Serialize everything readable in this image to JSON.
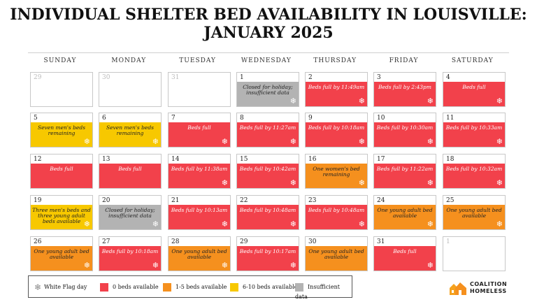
{
  "title_line1": "INDIVIDUAL SHELTER BED AVAILABILITY IN LOUISVILLE:",
  "title_line2": "JANUARY 2025",
  "weekdays": [
    "SUNDAY",
    "MONDAY",
    "TUESDAY",
    "WEDNESDAY",
    "THURSDAY",
    "FRIDAY",
    "SATURDAY"
  ],
  "colors": {
    "red": "#f2414b",
    "orange": "#f5901e",
    "yellow": "#f7c800",
    "gray": "#b3b3b3"
  },
  "weeks": [
    [
      {
        "day": "29",
        "status": "prev",
        "text": "",
        "white_flag": false
      },
      {
        "day": "30",
        "status": "prev",
        "text": "",
        "white_flag": false
      },
      {
        "day": "31",
        "status": "prev",
        "text": "",
        "white_flag": false
      },
      {
        "day": "1",
        "status": "gray",
        "text": "Closed for holiday; insufficient data",
        "white_flag": true
      },
      {
        "day": "2",
        "status": "red",
        "text": "Beds full by 11:49am",
        "white_flag": true
      },
      {
        "day": "3",
        "status": "red",
        "text": "Beds full by 2:43pm",
        "white_flag": true
      },
      {
        "day": "4",
        "status": "red",
        "text": "Beds full",
        "white_flag": true
      }
    ],
    [
      {
        "day": "5",
        "status": "yellow",
        "text": "Seven men's beds remaining",
        "white_flag": true
      },
      {
        "day": "6",
        "status": "yellow",
        "text": "Seven men's beds remaining",
        "white_flag": true
      },
      {
        "day": "7",
        "status": "red",
        "text": "Beds full",
        "white_flag": true
      },
      {
        "day": "8",
        "status": "red",
        "text": "Beds full by 11:27am",
        "white_flag": true
      },
      {
        "day": "9",
        "status": "red",
        "text": "Beds full by 10:18am",
        "white_flag": true
      },
      {
        "day": "10",
        "status": "red",
        "text": "Beds full by 10:30am",
        "white_flag": true
      },
      {
        "day": "11",
        "status": "red",
        "text": "Beds full by 10:33am",
        "white_flag": true
      }
    ],
    [
      {
        "day": "12",
        "status": "red",
        "text": "Beds full",
        "white_flag": false
      },
      {
        "day": "13",
        "status": "red",
        "text": "Beds full",
        "white_flag": false
      },
      {
        "day": "14",
        "status": "red",
        "text": "Beds full by 11:38am",
        "white_flag": true
      },
      {
        "day": "15",
        "status": "red",
        "text": "Beds full by 10:42am",
        "white_flag": true
      },
      {
        "day": "16",
        "status": "orange",
        "text": "One women's bed remaining",
        "white_flag": true
      },
      {
        "day": "17",
        "status": "red",
        "text": "Beds full by 11:22am",
        "white_flag": true
      },
      {
        "day": "18",
        "status": "red",
        "text": "Beds full by 10:32am",
        "white_flag": true
      }
    ],
    [
      {
        "day": "19",
        "status": "yellow",
        "text": "Three men's beds and three young adult beds available",
        "white_flag": true
      },
      {
        "day": "20",
        "status": "gray",
        "text": "Closed for holiday; insufficient data",
        "white_flag": true
      },
      {
        "day": "21",
        "status": "red",
        "text": "Beds full by 10:13am",
        "white_flag": true
      },
      {
        "day": "22",
        "status": "red",
        "text": "Beds full by 10:48am",
        "white_flag": true
      },
      {
        "day": "23",
        "status": "red",
        "text": "Beds full by 10:48am",
        "white_flag": true
      },
      {
        "day": "24",
        "status": "orange",
        "text": "One young adult bed available",
        "white_flag": true
      },
      {
        "day": "25",
        "status": "orange",
        "text": "One young adult bed available",
        "white_flag": true
      }
    ],
    [
      {
        "day": "26",
        "status": "orange",
        "text": "One young adult bed available",
        "white_flag": true
      },
      {
        "day": "27",
        "status": "red",
        "text": "Beds full by 10:18am",
        "white_flag": true
      },
      {
        "day": "28",
        "status": "orange",
        "text": "One young adult bed available",
        "white_flag": true
      },
      {
        "day": "29",
        "status": "red",
        "text": "Beds full by 10:17am",
        "white_flag": true
      },
      {
        "day": "30",
        "status": "orange",
        "text": "One young adult bed available",
        "white_flag": false
      },
      {
        "day": "31",
        "status": "red",
        "text": "Beds full",
        "white_flag": true
      },
      {
        "day": "1",
        "status": "prev",
        "text": "",
        "white_flag": false
      }
    ]
  ],
  "legend": {
    "white_flag": "White Flag day",
    "zero": "0 beds available",
    "one_five": "1-5 beds available",
    "six_ten": "6-10 beds available",
    "insufficient": "Insufficient data"
  },
  "logo": {
    "line1": "COALITION",
    "line2": "HOMELESS",
    "icon": "house-logo-icon"
  }
}
